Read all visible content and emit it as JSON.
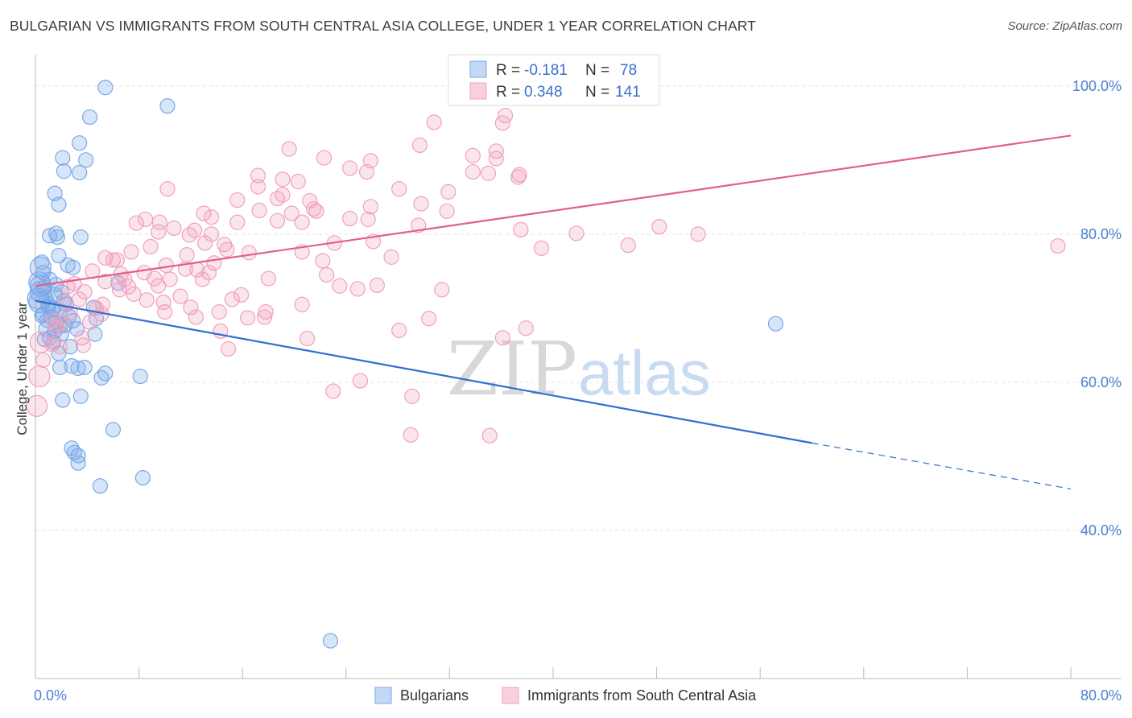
{
  "title": "BULGARIAN VS IMMIGRANTS FROM SOUTH CENTRAL ASIA COLLEGE, UNDER 1 YEAR CORRELATION CHART",
  "source": "Source: ZipAtlas.com",
  "watermark": {
    "zip": "ZIP",
    "atlas": "atlas"
  },
  "chart_data": {
    "type": "scatter",
    "ylabel": "College, Under 1 year",
    "xlabel": "",
    "xlim": [
      0,
      80
    ],
    "ylim": [
      20,
      104
    ],
    "x_ticks": [
      "0.0%",
      "80.0%"
    ],
    "y_ticks": [
      {
        "value": 40,
        "label": "40.0%"
      },
      {
        "value": 60,
        "label": "60.0%"
      },
      {
        "value": 80,
        "label": "80.0%"
      },
      {
        "value": 100,
        "label": "100.0%"
      }
    ],
    "grid": true,
    "legend_stats": [
      {
        "r_label": "R =",
        "r": "-0.181",
        "n_label": "N =",
        "n": "78",
        "color": "#7aa8e8"
      },
      {
        "r_label": "R =",
        "r": "0.348",
        "n_label": "N =",
        "n": "141",
        "color": "#f0a0bc"
      }
    ],
    "series": [
      {
        "name": "Bulgarians",
        "color": "#7aa8e8",
        "trend": {
          "x0": 0,
          "y0": 71.0,
          "x1": 60,
          "y1": 51.8,
          "dash_to_x": 80,
          "dash_to_y": 45.6,
          "color": "#2f6fd0"
        },
        "points": [
          [
            5.4,
            99.8
          ],
          [
            10.2,
            97.3
          ],
          [
            4.2,
            95.8
          ],
          [
            3.4,
            92.3
          ],
          [
            2.1,
            90.3
          ],
          [
            3.9,
            90.0
          ],
          [
            2.2,
            88.5
          ],
          [
            3.4,
            88.3
          ],
          [
            1.5,
            85.5
          ],
          [
            1.8,
            84.0
          ],
          [
            1.6,
            80.1
          ],
          [
            1.1,
            79.8
          ],
          [
            1.7,
            79.6
          ],
          [
            3.5,
            79.6
          ],
          [
            1.8,
            77.1
          ],
          [
            0.5,
            76.2
          ],
          [
            2.5,
            75.8
          ],
          [
            2.9,
            75.5
          ],
          [
            0.6,
            74.8
          ],
          [
            0.3,
            73.5
          ],
          [
            0.4,
            73.0
          ],
          [
            1.1,
            73.9
          ],
          [
            0.7,
            72.8
          ],
          [
            0.4,
            72.2
          ],
          [
            0.8,
            71.5
          ],
          [
            0.2,
            71.3
          ],
          [
            0.3,
            70.8
          ],
          [
            1.5,
            71.8
          ],
          [
            2.2,
            71.0
          ],
          [
            1.0,
            70.2
          ],
          [
            1.4,
            69.8
          ],
          [
            1.9,
            69.6
          ],
          [
            0.6,
            69.2
          ],
          [
            1.2,
            68.8
          ],
          [
            2.6,
            68.9
          ],
          [
            0.9,
            68.4
          ],
          [
            1.6,
            68.1
          ],
          [
            2.3,
            67.7
          ],
          [
            4.7,
            68.6
          ],
          [
            3.2,
            67.2
          ],
          [
            1.5,
            66.9
          ],
          [
            2.0,
            66.5
          ],
          [
            4.6,
            66.5
          ],
          [
            0.7,
            65.8
          ],
          [
            1.4,
            65.4
          ],
          [
            2.7,
            64.8
          ],
          [
            1.8,
            63.9
          ],
          [
            2.8,
            62.2
          ],
          [
            1.9,
            62.0
          ],
          [
            3.3,
            61.9
          ],
          [
            5.4,
            61.2
          ],
          [
            5.1,
            60.6
          ],
          [
            8.1,
            60.8
          ],
          [
            3.5,
            58.1
          ],
          [
            2.1,
            57.6
          ],
          [
            6.0,
            53.6
          ],
          [
            2.8,
            51.1
          ],
          [
            3.0,
            50.5
          ],
          [
            3.3,
            50.1
          ],
          [
            3.3,
            49.1
          ],
          [
            8.3,
            47.1
          ],
          [
            5.0,
            46.0
          ],
          [
            57.2,
            67.9
          ],
          [
            22.8,
            25.1
          ],
          [
            1.0,
            70.6
          ],
          [
            0.5,
            69.0
          ],
          [
            1.3,
            70.0
          ],
          [
            2.0,
            72.2
          ],
          [
            0.8,
            67.2
          ],
          [
            1.1,
            66.0
          ],
          [
            2.4,
            70.5
          ],
          [
            1.6,
            73.2
          ],
          [
            6.4,
            73.4
          ],
          [
            4.5,
            70.1
          ],
          [
            2.9,
            68.3
          ],
          [
            1.9,
            67.6
          ],
          [
            0.4,
            75.5
          ],
          [
            3.8,
            62.0
          ]
        ]
      },
      {
        "name": "Immigrants from South Central Asia",
        "color": "#f0a0bc",
        "trend": {
          "x0": 0,
          "y0": 73.0,
          "x1": 80,
          "y1": 93.3,
          "color": "#e0608a"
        },
        "points": [
          [
            30.8,
            95.1
          ],
          [
            36.1,
            95.0
          ],
          [
            36.3,
            96.0
          ],
          [
            29.7,
            92.0
          ],
          [
            19.6,
            91.5
          ],
          [
            22.3,
            90.3
          ],
          [
            33.8,
            90.6
          ],
          [
            35.6,
            91.2
          ],
          [
            35.6,
            90.2
          ],
          [
            25.9,
            89.9
          ],
          [
            24.3,
            88.9
          ],
          [
            25.6,
            88.4
          ],
          [
            33.8,
            88.4
          ],
          [
            35.0,
            88.2
          ],
          [
            37.4,
            88.0
          ],
          [
            37.3,
            87.7
          ],
          [
            17.2,
            87.9
          ],
          [
            19.1,
            87.4
          ],
          [
            20.3,
            87.1
          ],
          [
            17.2,
            86.4
          ],
          [
            28.1,
            86.1
          ],
          [
            31.9,
            85.7
          ],
          [
            10.2,
            86.1
          ],
          [
            19.1,
            85.3
          ],
          [
            18.7,
            84.8
          ],
          [
            21.2,
            84.5
          ],
          [
            15.6,
            84.6
          ],
          [
            29.8,
            84.1
          ],
          [
            25.9,
            83.7
          ],
          [
            21.5,
            83.4
          ],
          [
            17.3,
            83.2
          ],
          [
            21.7,
            83.1
          ],
          [
            13.0,
            82.8
          ],
          [
            19.8,
            82.8
          ],
          [
            8.5,
            82.0
          ],
          [
            9.6,
            81.6
          ],
          [
            13.6,
            82.3
          ],
          [
            7.8,
            81.5
          ],
          [
            15.6,
            81.6
          ],
          [
            18.7,
            81.8
          ],
          [
            20.6,
            81.6
          ],
          [
            24.3,
            82.1
          ],
          [
            25.7,
            82.0
          ],
          [
            29.6,
            81.2
          ],
          [
            12.3,
            80.5
          ],
          [
            9.5,
            80.3
          ],
          [
            13.6,
            80.0
          ],
          [
            11.9,
            79.9
          ],
          [
            10.7,
            80.8
          ],
          [
            13.1,
            78.8
          ],
          [
            14.6,
            78.6
          ],
          [
            23.1,
            78.8
          ],
          [
            8.9,
            78.3
          ],
          [
            14.8,
            77.9
          ],
          [
            16.5,
            77.5
          ],
          [
            7.4,
            77.6
          ],
          [
            11.7,
            77.2
          ],
          [
            5.4,
            76.8
          ],
          [
            6.3,
            76.5
          ],
          [
            10.1,
            75.8
          ],
          [
            12.5,
            75.2
          ],
          [
            8.4,
            74.8
          ],
          [
            6.6,
            74.6
          ],
          [
            13.4,
            74.8
          ],
          [
            4.4,
            75.0
          ],
          [
            9.2,
            74.0
          ],
          [
            5.4,
            73.6
          ],
          [
            3.0,
            73.3
          ],
          [
            6.5,
            72.5
          ],
          [
            3.8,
            72.2
          ],
          [
            7.6,
            71.9
          ],
          [
            11.2,
            71.6
          ],
          [
            3.4,
            71.2
          ],
          [
            5.2,
            70.5
          ],
          [
            9.9,
            70.8
          ],
          [
            2.3,
            70.9
          ],
          [
            4.7,
            70.0
          ],
          [
            15.2,
            71.2
          ],
          [
            14.2,
            69.5
          ],
          [
            12.4,
            68.8
          ],
          [
            17.8,
            69.5
          ],
          [
            2.7,
            69.3
          ],
          [
            1.4,
            68.3
          ],
          [
            2.0,
            68.0
          ],
          [
            1.6,
            67.4
          ],
          [
            14.3,
            66.9
          ],
          [
            28.1,
            67.0
          ],
          [
            30.4,
            68.6
          ],
          [
            17.7,
            68.8
          ],
          [
            37.9,
            67.3
          ],
          [
            21.0,
            65.9
          ],
          [
            1.3,
            65.1
          ],
          [
            3.7,
            65.0
          ],
          [
            36.1,
            66.0
          ],
          [
            14.9,
            64.5
          ],
          [
            0.4,
            65.4
          ],
          [
            1.9,
            64.8
          ],
          [
            0.6,
            63.0
          ],
          [
            25.1,
            60.2
          ],
          [
            23.0,
            58.8
          ],
          [
            29.1,
            58.1
          ],
          [
            0.3,
            60.8
          ],
          [
            0.1,
            56.8
          ],
          [
            29.0,
            52.9
          ],
          [
            35.1,
            52.8
          ],
          [
            79.0,
            78.4
          ],
          [
            41.8,
            80.1
          ],
          [
            37.5,
            80.6
          ],
          [
            39.1,
            78.1
          ],
          [
            48.2,
            81.0
          ],
          [
            51.2,
            80.0
          ],
          [
            45.8,
            78.5
          ],
          [
            9.5,
            73.0
          ],
          [
            22.5,
            74.5
          ],
          [
            23.5,
            73.0
          ],
          [
            26.4,
            73.1
          ],
          [
            24.9,
            72.6
          ],
          [
            31.4,
            72.5
          ],
          [
            20.6,
            70.5
          ],
          [
            18.0,
            74.0
          ],
          [
            15.9,
            71.8
          ],
          [
            10.4,
            73.9
          ],
          [
            11.6,
            75.3
          ],
          [
            6.9,
            73.9
          ],
          [
            16.4,
            68.7
          ],
          [
            12.0,
            70.1
          ],
          [
            7.2,
            72.9
          ],
          [
            5.1,
            69.2
          ],
          [
            4.2,
            68.1
          ],
          [
            3.6,
            66.0
          ],
          [
            2.5,
            72.9
          ],
          [
            6.0,
            76.5
          ],
          [
            8.6,
            71.1
          ],
          [
            10.0,
            69.5
          ],
          [
            12.9,
            73.9
          ],
          [
            13.8,
            76.1
          ],
          [
            20.6,
            77.6
          ],
          [
            22.2,
            76.4
          ],
          [
            26.1,
            79.0
          ],
          [
            27.5,
            76.9
          ],
          [
            31.8,
            83.1
          ]
        ]
      }
    ]
  }
}
